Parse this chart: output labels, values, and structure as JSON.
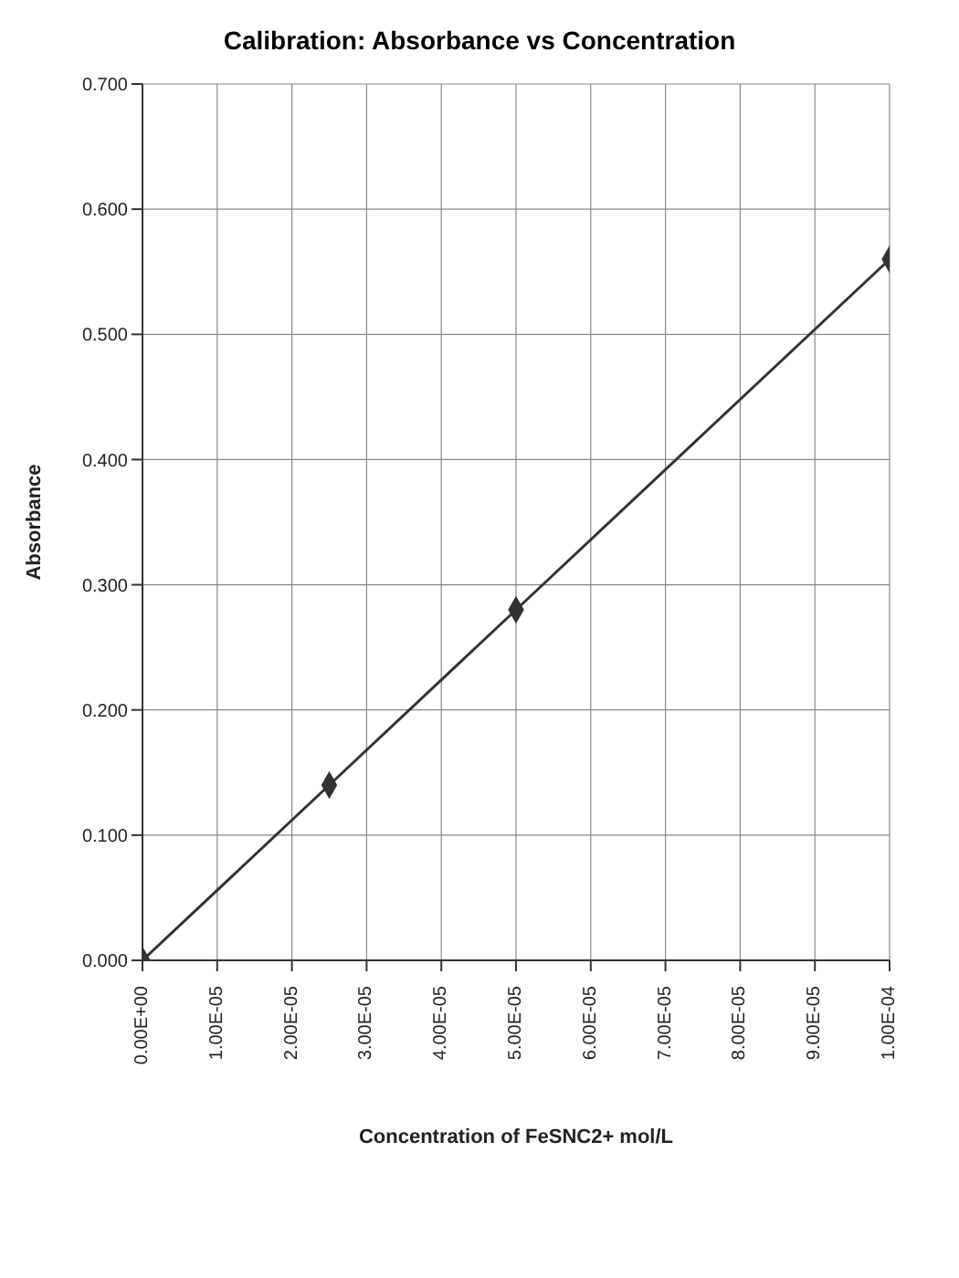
{
  "chart_data": {
    "type": "line",
    "title": "Calibration: Absorbance vs Concentration",
    "xlabel": "Concentration of FeSNC2+ mol/L",
    "ylabel": "Absorbance",
    "x": [
      0,
      2.5e-05,
      5e-05,
      0.0001
    ],
    "series": [
      {
        "color": "#333333",
        "values": [
          0,
          0.14,
          0.28,
          0.56
        ]
      }
    ],
    "xlim": [
      0,
      0.0001
    ],
    "xticks": [
      {
        "value": 0,
        "label": "0.00E+00"
      },
      {
        "value": 1e-05,
        "label": "1.00E-05"
      },
      {
        "value": 2e-05,
        "label": "2.00E-05"
      },
      {
        "value": 3e-05,
        "label": "3.00E-05"
      },
      {
        "value": 4e-05,
        "label": "4.00E-05"
      },
      {
        "value": 5e-05,
        "label": "5.00E-05"
      },
      {
        "value": 6e-05,
        "label": "6.00E-05"
      },
      {
        "value": 7e-05,
        "label": "7.00E-05"
      },
      {
        "value": 8e-05,
        "label": "8.00E-05"
      },
      {
        "value": 9e-05,
        "label": "9.00E-05"
      },
      {
        "value": 0.0001,
        "label": "1.00E-04"
      }
    ],
    "ylim": [
      0,
      0.7
    ],
    "yticks": [
      {
        "value": 0,
        "label": "0.000"
      },
      {
        "value": 0.1,
        "label": "0.100"
      },
      {
        "value": 0.2,
        "label": "0.200"
      },
      {
        "value": 0.3,
        "label": "0.300"
      },
      {
        "value": 0.4,
        "label": "0.400"
      },
      {
        "value": 0.5,
        "label": "0.500"
      },
      {
        "value": 0.6,
        "label": "0.600"
      },
      {
        "value": 0.7,
        "label": "0.700"
      }
    ],
    "grid": true,
    "marker": "diamond",
    "line_style": "solid"
  }
}
